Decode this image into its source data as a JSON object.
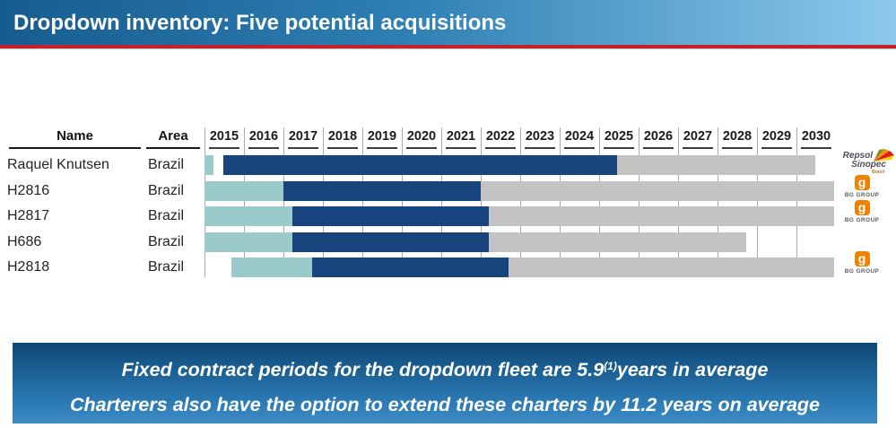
{
  "title": "Dropdown inventory: Five potential acquisitions",
  "table": {
    "name_header": "Name",
    "area_header": "Area"
  },
  "callout": {
    "line1_pre": "Fixed contract periods for the dropdown fleet are 5.9",
    "line1_sup": "(1)",
    "line1_post": "years in average",
    "line2": "Charterers also have the option to extend these charters by 11.2 years on average"
  },
  "logos": {
    "repsol": {
      "line1": "Repsol",
      "line2": "Sinopec",
      "line3": "Brasil"
    },
    "bg": {
      "letter": "g",
      "caption": "BG GROUP"
    }
  },
  "colors": {
    "titlebar_left": "#175c8f",
    "titlebar_right": "#8cc9ec",
    "accent_red": "#c3222a",
    "bar_pre": "#9bcaca",
    "bar_fixed": "#17447d",
    "bar_option": "#c3c3c3",
    "callout_top": "#0e4876",
    "callout_bottom": "#3d8cc4",
    "bg_orange": "#ee8200"
  },
  "chart_data": {
    "type": "gantt",
    "title": "Dropdown inventory: Five potential acquisitions",
    "x_axis": {
      "start": 2015,
      "end": 2031,
      "tick_labels": [
        "2015",
        "2016",
        "2017",
        "2018",
        "2019",
        "2020",
        "2021",
        "2022",
        "2023",
        "2024",
        "2025",
        "2026",
        "2027",
        "2028",
        "2029",
        "2030"
      ]
    },
    "segment_kinds": [
      "pre",
      "fixed",
      "option"
    ],
    "rows": [
      {
        "name": "Raquel Knutsen",
        "area": "Brazil",
        "logo": "repsol",
        "segments": [
          {
            "kind": "pre",
            "from": 2015.0,
            "to": 2015.22
          },
          {
            "kind": "fixed",
            "from": 2015.48,
            "to": 2025.45
          },
          {
            "kind": "option",
            "from": 2025.45,
            "to": 2030.48
          }
        ]
      },
      {
        "name": "H2816",
        "area": "Brazil",
        "logo": "bg",
        "segments": [
          {
            "kind": "pre",
            "from": 2015.0,
            "to": 2017.0
          },
          {
            "kind": "fixed",
            "from": 2017.0,
            "to": 2022.0
          },
          {
            "kind": "option",
            "from": 2022.0,
            "to": 2030.95
          }
        ]
      },
      {
        "name": "H2817",
        "area": "Brazil",
        "logo": "bg",
        "segments": [
          {
            "kind": "pre",
            "from": 2015.0,
            "to": 2017.22
          },
          {
            "kind": "fixed",
            "from": 2017.22,
            "to": 2022.2
          },
          {
            "kind": "option",
            "from": 2022.2,
            "to": 2030.95
          }
        ]
      },
      {
        "name": "H686",
        "area": "Brazil",
        "logo": null,
        "segments": [
          {
            "kind": "pre",
            "from": 2015.0,
            "to": 2017.22
          },
          {
            "kind": "fixed",
            "from": 2017.22,
            "to": 2022.2
          },
          {
            "kind": "option",
            "from": 2022.2,
            "to": 2028.72
          }
        ]
      },
      {
        "name": "H2818",
        "area": "Brazil",
        "logo": "bg",
        "segments": [
          {
            "kind": "pre",
            "from": 2015.68,
            "to": 2017.73
          },
          {
            "kind": "fixed",
            "from": 2017.73,
            "to": 2022.7
          },
          {
            "kind": "option",
            "from": 2022.7,
            "to": 2030.95
          }
        ]
      }
    ]
  }
}
